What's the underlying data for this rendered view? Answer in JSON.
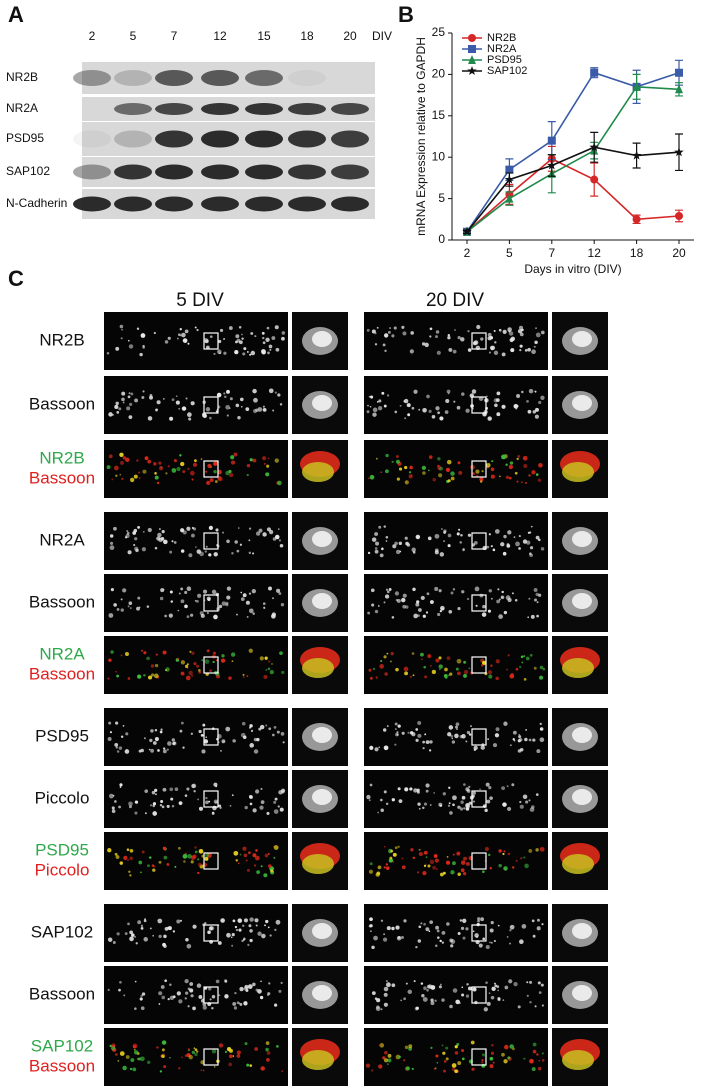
{
  "panel_a": {
    "label": "A",
    "columns": [
      "2",
      "5",
      "7",
      "12",
      "15",
      "18",
      "20"
    ],
    "unit": "DIV",
    "rows": [
      "NR2B",
      "NR2A",
      "PSD95",
      "SAP102",
      "N-Cadherin"
    ]
  },
  "chart_data": {
    "type": "line",
    "panel_label": "B",
    "ylabel": "mRNA Expression relative to GAPDH",
    "xlabel": "Days in vitro (DIV)",
    "categories": [
      "2",
      "5",
      "7",
      "12",
      "18",
      "20"
    ],
    "ylim": [
      0,
      25
    ],
    "yticks": [
      0,
      5,
      10,
      15,
      20,
      25
    ],
    "series": [
      {
        "name": "NR2B",
        "color": "#d62728",
        "marker": "circle",
        "values": [
          1,
          5.5,
          9.8,
          7.3,
          2.5,
          2.9
        ],
        "errors": [
          0.2,
          1.2,
          1.5,
          2.0,
          0.5,
          0.7
        ]
      },
      {
        "name": "NR2A",
        "color": "#3a5ba8",
        "marker": "square",
        "values": [
          1,
          8.5,
          12,
          20.2,
          18.5,
          20.2
        ],
        "errors": [
          0.2,
          1.3,
          2.3,
          0.6,
          2.0,
          1.5
        ]
      },
      {
        "name": "PSD95",
        "color": "#1f8a4c",
        "marker": "triangle",
        "values": [
          1,
          5,
          8,
          10.8,
          18.5,
          18.2
        ],
        "errors": [
          0.2,
          0.8,
          2.3,
          1.0,
          1.5,
          0.8
        ]
      },
      {
        "name": "SAP102",
        "color": "#111111",
        "marker": "star",
        "values": [
          1,
          7.3,
          9,
          11.2,
          10.2,
          10.6
        ],
        "errors": [
          0.2,
          0.8,
          1.3,
          1.8,
          1.5,
          2.2
        ]
      }
    ]
  },
  "panel_c": {
    "label": "C",
    "columns": [
      "5 DIV",
      "20 DIV"
    ],
    "rows": [
      [
        "NR2B"
      ],
      [
        "Bassoon"
      ],
      [
        "NR2B",
        "Bassoon"
      ],
      [
        "NR2A"
      ],
      [
        "Bassoon"
      ],
      [
        "NR2A",
        "Bassoon"
      ],
      [
        "PSD95"
      ],
      [
        "Piccolo"
      ],
      [
        "PSD95",
        "Piccolo"
      ],
      [
        "SAP102"
      ],
      [
        "Bassoon"
      ],
      [
        "SAP102",
        "Bassoon"
      ]
    ]
  }
}
